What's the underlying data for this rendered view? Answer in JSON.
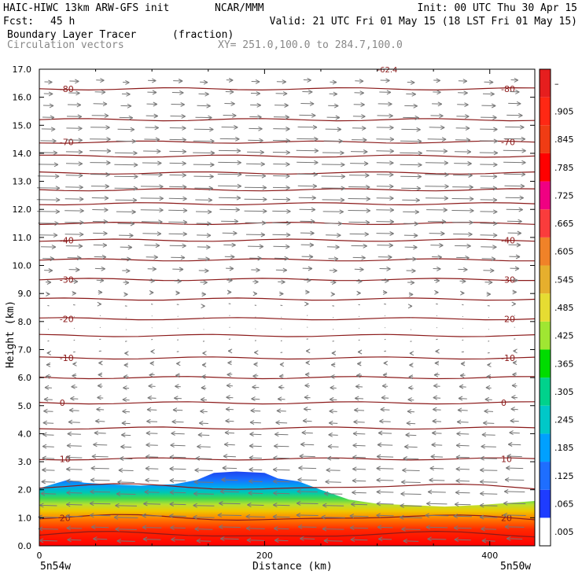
{
  "header": {
    "model": "HAIC-HIWC 13km ARW-GFS init",
    "org": "NCAR/MMM",
    "init": "Init: 00 UTC Thu 30 Apr 15",
    "fcst_label": "Fcst:",
    "fcst_value": "45 h",
    "valid": "Valid: 21 UTC Fri 01 May 15 (18 LST Fri 01 May 15)",
    "field_name": "Boundary Layer Tracer",
    "field_units": "(fraction)",
    "vector_name": "Circulation vectors",
    "xy": "XY= 251.0,100.0 to 284.7,100.0"
  },
  "chart_data": {
    "type": "heatmap",
    "ylabel": "Height (km)",
    "xlabel": "Distance (km)",
    "xlim": [
      0,
      440
    ],
    "ylim": [
      0,
      17
    ],
    "x_ticks": [
      {
        "value": 0,
        "label": "0"
      },
      {
        "value": 200,
        "label": "200"
      },
      {
        "value": 400,
        "label": "400"
      }
    ],
    "y_ticks": [
      {
        "value": 0,
        "label": "0.0"
      },
      {
        "value": 1,
        "label": "1.0"
      },
      {
        "value": 2,
        "label": "2.0"
      },
      {
        "value": 3,
        "label": "3.0"
      },
      {
        "value": 4,
        "label": "4.0"
      },
      {
        "value": 5,
        "label": "5.0"
      },
      {
        "value": 6,
        "label": "6.0"
      },
      {
        "value": 7,
        "label": "7.0"
      },
      {
        "value": 8,
        "label": "8.0"
      },
      {
        "value": 9,
        "label": "9.0"
      },
      {
        "value": 10,
        "label": "10.0"
      },
      {
        "value": 11,
        "label": "11.0"
      },
      {
        "value": 12,
        "label": "12.0"
      },
      {
        "value": 13,
        "label": "13.0"
      },
      {
        "value": 14,
        "label": "14.0"
      },
      {
        "value": 15,
        "label": "15.0"
      },
      {
        "value": 16,
        "label": "16.0"
      },
      {
        "value": 17,
        "label": "17.0"
      }
    ],
    "endpoints": {
      "left": "5n54w",
      "right": "5n50w"
    },
    "colorbar": {
      "labels": [
        ".005",
        ".065",
        ".125",
        ".185",
        ".245",
        ".305",
        ".365",
        ".425",
        ".485",
        ".545",
        ".605",
        ".665",
        ".725",
        ".785",
        ".845",
        ".905",
        "–"
      ],
      "colors": [
        "#ffffff",
        "#1e3cff",
        "#1e6eff",
        "#00a0ff",
        "#00c8c8",
        "#00d28c",
        "#00dc00",
        "#a0e632",
        "#e6dc32",
        "#e6af2d",
        "#f08228",
        "#fa3c3c",
        "#f00082",
        "#ff0000",
        "#f03c14",
        "#ff2814",
        "#e61e1e"
      ]
    },
    "temperature_contours": {
      "color": "#8b1a1a",
      "levels": [
        {
          "value": -80,
          "height": 16.3,
          "label": "-80"
        },
        {
          "value": -70,
          "height": 14.4,
          "label": "-70"
        },
        {
          "value": -40,
          "height": 10.9,
          "label": "-40"
        },
        {
          "value": -30,
          "height": 9.5,
          "label": "-30"
        },
        {
          "value": -20,
          "height": 8.1,
          "label": "-20"
        },
        {
          "value": -10,
          "height": 6.7,
          "label": "-10"
        },
        {
          "value": 0,
          "height": 5.1,
          "label": "0"
        },
        {
          "value": 10,
          "height": 3.1,
          "label": "10"
        },
        {
          "value": 20,
          "height": 1.0,
          "label": "20"
        }
      ],
      "unlabeled_heights": [
        15.2,
        13.9,
        13.3,
        12.7,
        12.2,
        11.5,
        10.2,
        8.8,
        7.5,
        6.0,
        4.2,
        2.1,
        0.4
      ],
      "top_fragment_label": "-62.4"
    },
    "tracer_top_km": [
      [
        0,
        2.05
      ],
      [
        12,
        2.2
      ],
      [
        25,
        2.35
      ],
      [
        40,
        2.25
      ],
      [
        60,
        2.2
      ],
      [
        90,
        2.15
      ],
      [
        120,
        2.2
      ],
      [
        140,
        2.35
      ],
      [
        155,
        2.6
      ],
      [
        175,
        2.65
      ],
      [
        200,
        2.6
      ],
      [
        212,
        2.4
      ],
      [
        230,
        2.3
      ],
      [
        250,
        2.0
      ],
      [
        275,
        1.65
      ],
      [
        300,
        1.5
      ],
      [
        330,
        1.45
      ],
      [
        360,
        1.4
      ],
      [
        390,
        1.45
      ],
      [
        440,
        1.6
      ]
    ],
    "wind_vectors": {
      "color": "#777777",
      "profile": [
        {
          "height": 16.5,
          "u": 0.35
        },
        {
          "height": 15.0,
          "u": 0.7
        },
        {
          "height": 14.2,
          "u": 0.85
        },
        {
          "height": 13.0,
          "u": 0.9
        },
        {
          "height": 12.0,
          "u": 0.85
        },
        {
          "height": 11.0,
          "u": 0.7
        },
        {
          "height": 10.0,
          "u": 0.45
        },
        {
          "height": 9.0,
          "u": 0.15
        },
        {
          "height": 8.0,
          "u": 0.0
        },
        {
          "height": 6.5,
          "u": -0.15
        },
        {
          "height": 5.0,
          "u": -0.35
        },
        {
          "height": 4.0,
          "u": -0.5
        },
        {
          "height": 3.0,
          "u": -0.65
        },
        {
          "height": 2.0,
          "u": -0.75
        },
        {
          "height": 1.0,
          "u": -0.9
        },
        {
          "height": 0.2,
          "u": -0.7
        }
      ]
    }
  }
}
